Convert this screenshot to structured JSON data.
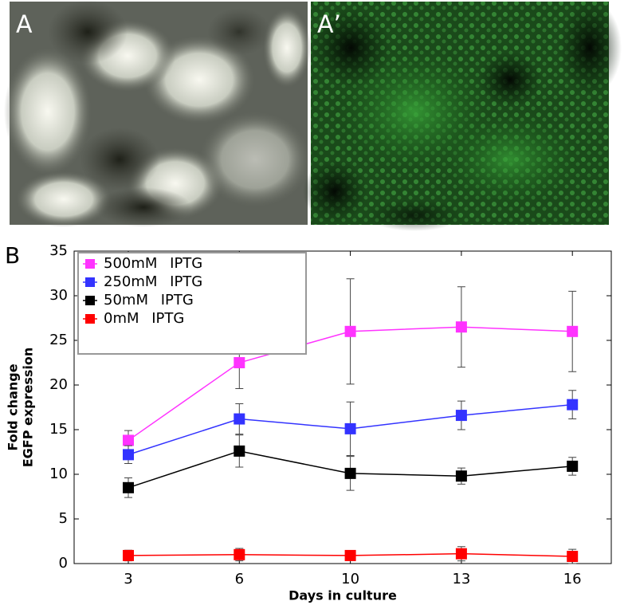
{
  "panels": {
    "a_label": "A",
    "a_prime_label": "A’"
  },
  "chart_data": {
    "type": "line",
    "panel_label": "B",
    "xlabel": "Days in culture",
    "ylabel": [
      "Fold change",
      "EGFP expression"
    ],
    "categories": [
      "3",
      "6",
      "10",
      "13",
      "16"
    ],
    "ylim": [
      0,
      35
    ],
    "yticks": [
      0,
      5,
      10,
      15,
      20,
      25,
      30,
      35
    ],
    "legend": "upper left",
    "series": [
      {
        "name": "500mM IPTG",
        "color": "#ff33ff",
        "values": [
          13.8,
          22.5,
          26.0,
          26.5,
          26.0
        ],
        "errors": [
          1.1,
          2.9,
          5.9,
          4.5,
          4.5
        ]
      },
      {
        "name": "250mM IPTG",
        "color": "#3333ff",
        "values": [
          12.2,
          16.2,
          15.1,
          16.6,
          17.8
        ],
        "errors": [
          1.0,
          1.7,
          3.0,
          1.6,
          1.6
        ]
      },
      {
        "name": "50mM IPTG",
        "color": "#000000",
        "values": [
          8.5,
          12.6,
          10.1,
          9.8,
          10.9
        ],
        "errors": [
          1.1,
          1.8,
          1.9,
          0.9,
          1.0
        ]
      },
      {
        "name": "0mM IPTG",
        "color": "#ff0000",
        "values": [
          0.9,
          1.0,
          0.9,
          1.1,
          0.8
        ],
        "errors": [
          0.6,
          0.7,
          0.5,
          0.8,
          0.8
        ]
      }
    ]
  }
}
